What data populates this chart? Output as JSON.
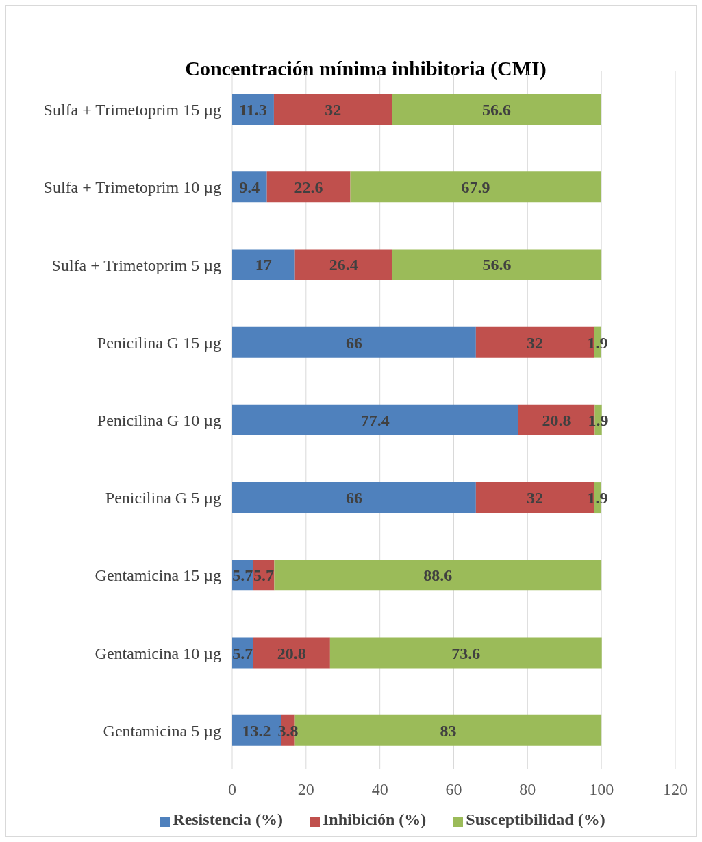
{
  "chart_data": {
    "type": "bar",
    "orientation": "horizontal",
    "stacked": true,
    "title": "Concentración mínima inhibitoria (CMI)",
    "categories": [
      "Sulfa + Trimetoprim 15 µg",
      "Sulfa + Trimetoprim 10 µg",
      "Sulfa + Trimetoprim 5 µg",
      "Penicilina G 15 µg",
      "Penicilina G 10 µg",
      "Penicilina G 5 µg",
      "Gentamicina 15 µg",
      "Gentamicina 10 µg",
      "Gentamicina 5 µg"
    ],
    "series": [
      {
        "name": "Resistencia (%)",
        "color": "#4f81bd",
        "values": [
          11.3,
          9.4,
          17,
          66,
          77.4,
          66,
          5.7,
          5.7,
          13.2
        ]
      },
      {
        "name": "Inhibición (%)",
        "color": "#c0504d",
        "values": [
          32,
          22.6,
          26.4,
          32,
          20.8,
          32,
          5.7,
          20.8,
          3.8
        ]
      },
      {
        "name": "Susceptibilidad (%)",
        "color": "#9bbb59",
        "values": [
          56.6,
          67.9,
          56.6,
          1.9,
          1.9,
          1.9,
          88.6,
          73.6,
          83
        ]
      }
    ],
    "xlim": [
      0,
      120
    ],
    "xticks": [
      0,
      20,
      40,
      60,
      80,
      100,
      120
    ],
    "grid": "x",
    "legend": "bottom",
    "data_labels": true
  }
}
